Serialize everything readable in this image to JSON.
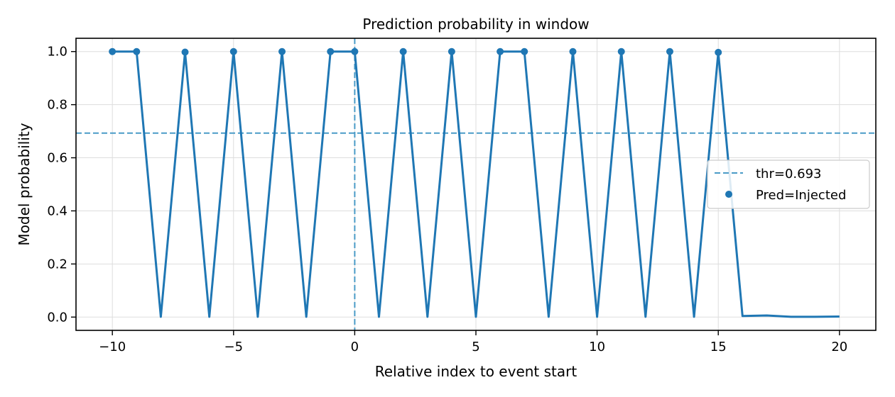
{
  "chart_data": {
    "type": "line",
    "title": "Prediction probability in window",
    "xlabel": "Relative index to event start",
    "ylabel": "Model probability",
    "xlim": [
      -11.5,
      21.5
    ],
    "ylim": [
      -0.05,
      1.05
    ],
    "xticks": [
      -10,
      -5,
      0,
      5,
      10,
      15,
      20
    ],
    "xtick_labels": [
      "−10",
      "−5",
      "0",
      "5",
      "10",
      "15",
      "20"
    ],
    "yticks": [
      0.0,
      0.2,
      0.4,
      0.6,
      0.8,
      1.0
    ],
    "ytick_labels": [
      "0.0",
      "0.2",
      "0.4",
      "0.6",
      "0.8",
      "1.0"
    ],
    "grid": true,
    "legend_position": "center-right",
    "threshold": {
      "label": "thr=0.693",
      "value": 0.693,
      "color": "#4a9bc7"
    },
    "event_start_x": 0,
    "series": [
      {
        "color": "#1f77b4",
        "x": [
          -10,
          -9,
          -8,
          -7,
          -6,
          -5,
          -4,
          -3,
          -2,
          -1,
          0,
          1,
          2,
          3,
          4,
          5,
          6,
          7,
          8,
          9,
          10,
          11,
          12,
          13,
          14,
          15,
          16,
          17,
          18,
          19,
          20
        ],
        "y": [
          1.0,
          1.0,
          0.001,
          0.998,
          0.001,
          1.0,
          0.001,
          1.0,
          0.001,
          1.0,
          1.0,
          0.001,
          1.0,
          0.001,
          1.0,
          0.001,
          1.0,
          1.0,
          0.001,
          1.0,
          0.001,
          1.0,
          0.001,
          1.0,
          0.001,
          0.997,
          0.004,
          0.006,
          0.001,
          0.001,
          0.002
        ]
      }
    ],
    "scatter": {
      "name": "Pred=Injected",
      "color": "#1f77b4",
      "x": [
        -10,
        -9,
        -7,
        -5,
        -3,
        -1,
        0,
        2,
        4,
        6,
        7,
        9,
        11,
        13,
        15
      ],
      "y": [
        1.0,
        1.0,
        0.998,
        1.0,
        1.0,
        1.0,
        1.0,
        1.0,
        1.0,
        1.0,
        1.0,
        1.0,
        1.0,
        1.0,
        0.997
      ]
    }
  }
}
